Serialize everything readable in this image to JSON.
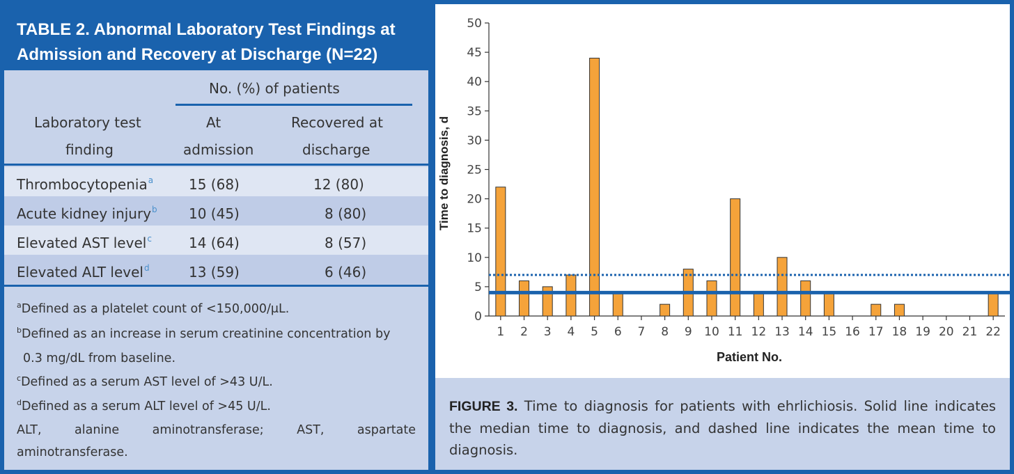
{
  "table": {
    "title": "TABLE 2. Abnormal Laboratory Test Findings at Admission and Recovery at Discharge (N=22)",
    "group_header": "No. (%) of patients",
    "col_headers": {
      "finding_line1": "Laboratory test",
      "finding_line2": "finding",
      "admission_line1": "At",
      "admission_line2": "admission",
      "discharge_line1": "Recovered at",
      "discharge_line2": "discharge"
    },
    "rows": [
      {
        "finding": "Thrombocytopenia",
        "note": "a",
        "admission": "15 (68)",
        "discharge": "12 (80)"
      },
      {
        "finding": "Acute kidney injury",
        "note": "b",
        "admission": "10 (45)",
        "discharge": "8 (80)"
      },
      {
        "finding": "Elevated AST level",
        "note": "c",
        "admission": "14 (64)",
        "discharge": "8 (57)"
      },
      {
        "finding": "Elevated ALT level",
        "note": "d",
        "admission": "13 (59)",
        "discharge": "6 (46)"
      }
    ],
    "footnotes": {
      "a_mark": "a",
      "a_text": "Defined as a platelet count of <150,000/μL.",
      "b_mark": "b",
      "b_text1": "Defined as an increase in serum creatinine concentration by",
      "b_text2": "0.3 mg/dL from baseline.",
      "c_mark": "c",
      "c_text": "Defined as a serum AST level of >43 U/L.",
      "d_mark": "d",
      "d_text": "Defined as a serum ALT level of >45 U/L.",
      "abbr_1": "ALT,",
      "abbr_2": "alanine",
      "abbr_3": "aminotransferase;",
      "abbr_4": "AST,",
      "abbr_5": "aspartate",
      "abbr_line2": "aminotransferase."
    }
  },
  "figure": {
    "caption_label": "FIGURE 3.",
    "caption_text": "Time to diagnosis for patients with ehrlichiosis. Solid line indicates the median time to diagnosis, and dashed line indicates the mean time to diagnosis."
  },
  "chart_data": {
    "type": "bar",
    "xlabel": "Patient No.",
    "ylabel": "Time to diagnosis, d",
    "ylim": [
      0,
      50
    ],
    "yticks": [
      0,
      5,
      10,
      15,
      20,
      25,
      30,
      35,
      40,
      45,
      50
    ],
    "categories": [
      "1",
      "2",
      "3",
      "4",
      "5",
      "6",
      "7",
      "8",
      "9",
      "10",
      "11",
      "12",
      "13",
      "14",
      "15",
      "16",
      "17",
      "18",
      "19",
      "20",
      "21",
      "22"
    ],
    "values": [
      22,
      6,
      5,
      7,
      44,
      4,
      0,
      2,
      8,
      6,
      20,
      4,
      10,
      6,
      4,
      0,
      2,
      2,
      0,
      0,
      0,
      4
    ],
    "median_line": 4,
    "mean_line": 7,
    "colors": {
      "bar": "#f5a33a",
      "bar_edge": "#333333",
      "reference": "#1a62ad"
    },
    "grid": false
  }
}
